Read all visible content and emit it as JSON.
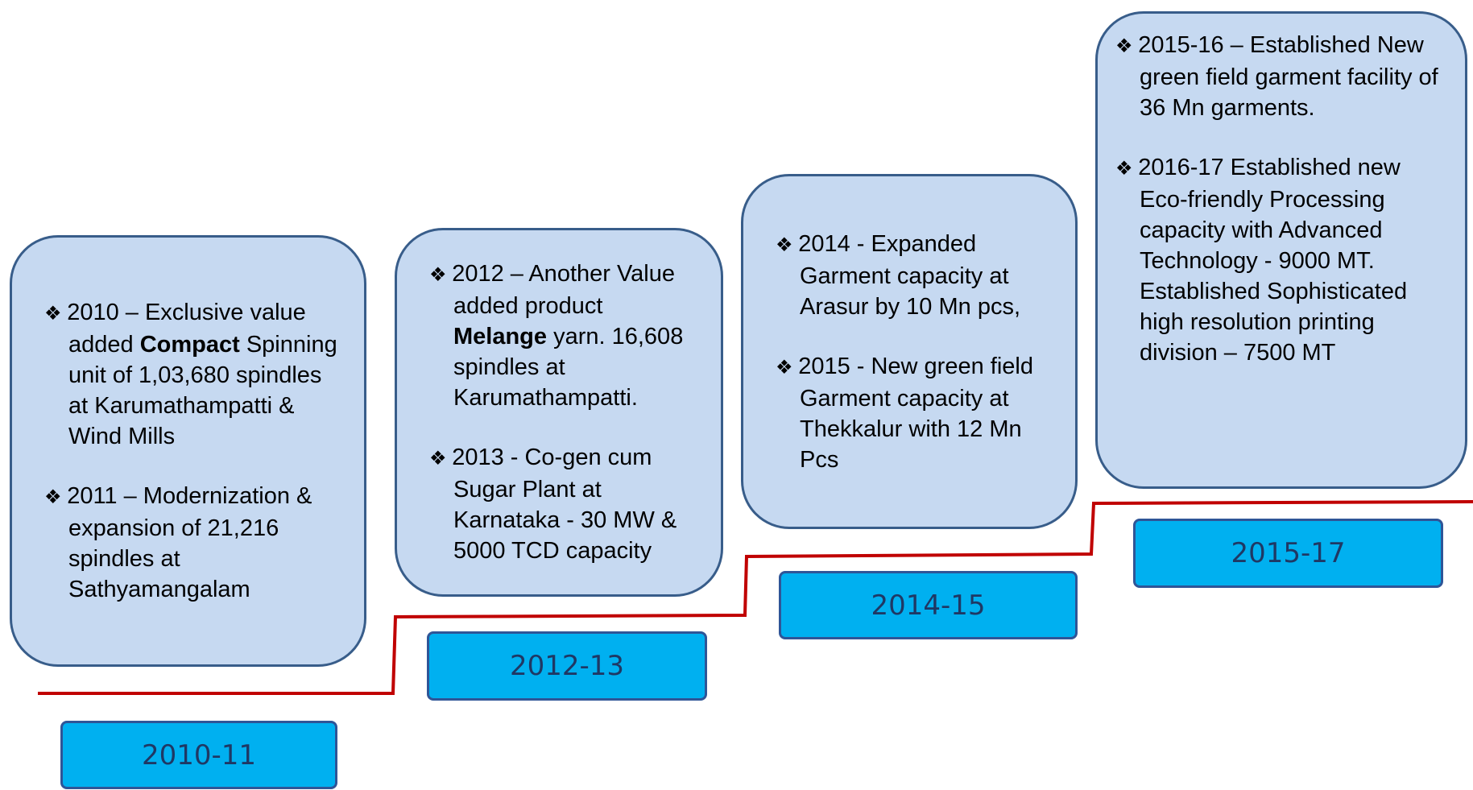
{
  "stages": [
    {
      "period": "2010-11",
      "items": [
        {
          "parts": [
            "2010 – Exclusive value added ",
            "Compact",
            " Spinning unit of 1,03,680 spindles at Karumathampatti & Wind Mills"
          ],
          "bold": [
            1
          ]
        },
        {
          "parts": [
            "2011 – Modernization & expansion of 21,216 spindles at Sathyamangalam"
          ],
          "bold": []
        }
      ]
    },
    {
      "period": "2012-13",
      "items": [
        {
          "parts": [
            "2012 – Another Value added product ",
            "Melange",
            " yarn. 16,608 spindles at Karumathampatti."
          ],
          "bold": [
            1
          ]
        },
        {
          "parts": [
            "2013 - Co-gen cum Sugar Plant at Karnataka - 30 MW & 5000 TCD capacity"
          ],
          "bold": []
        }
      ]
    },
    {
      "period": "2014-15",
      "items": [
        {
          "parts": [
            "2014 - Expanded Garment capacity at Arasur by 10 Mn pcs,"
          ],
          "bold": []
        },
        {
          "parts": [
            "2015 -  New green field Garment capacity at Thekkalur with 12 Mn Pcs"
          ],
          "bold": []
        }
      ]
    },
    {
      "period": "2015-17",
      "items": [
        {
          "parts": [
            "2015-16 – Established New green field garment facility of  36 Mn garments."
          ],
          "bold": []
        },
        {
          "parts": [
            "2016-17 Established new Eco-friendly Processing capacity with Advanced Technology - 9000 MT.  Established Sophisticated high resolution printing division – 7500 MT"
          ],
          "bold": []
        }
      ]
    }
  ]
}
